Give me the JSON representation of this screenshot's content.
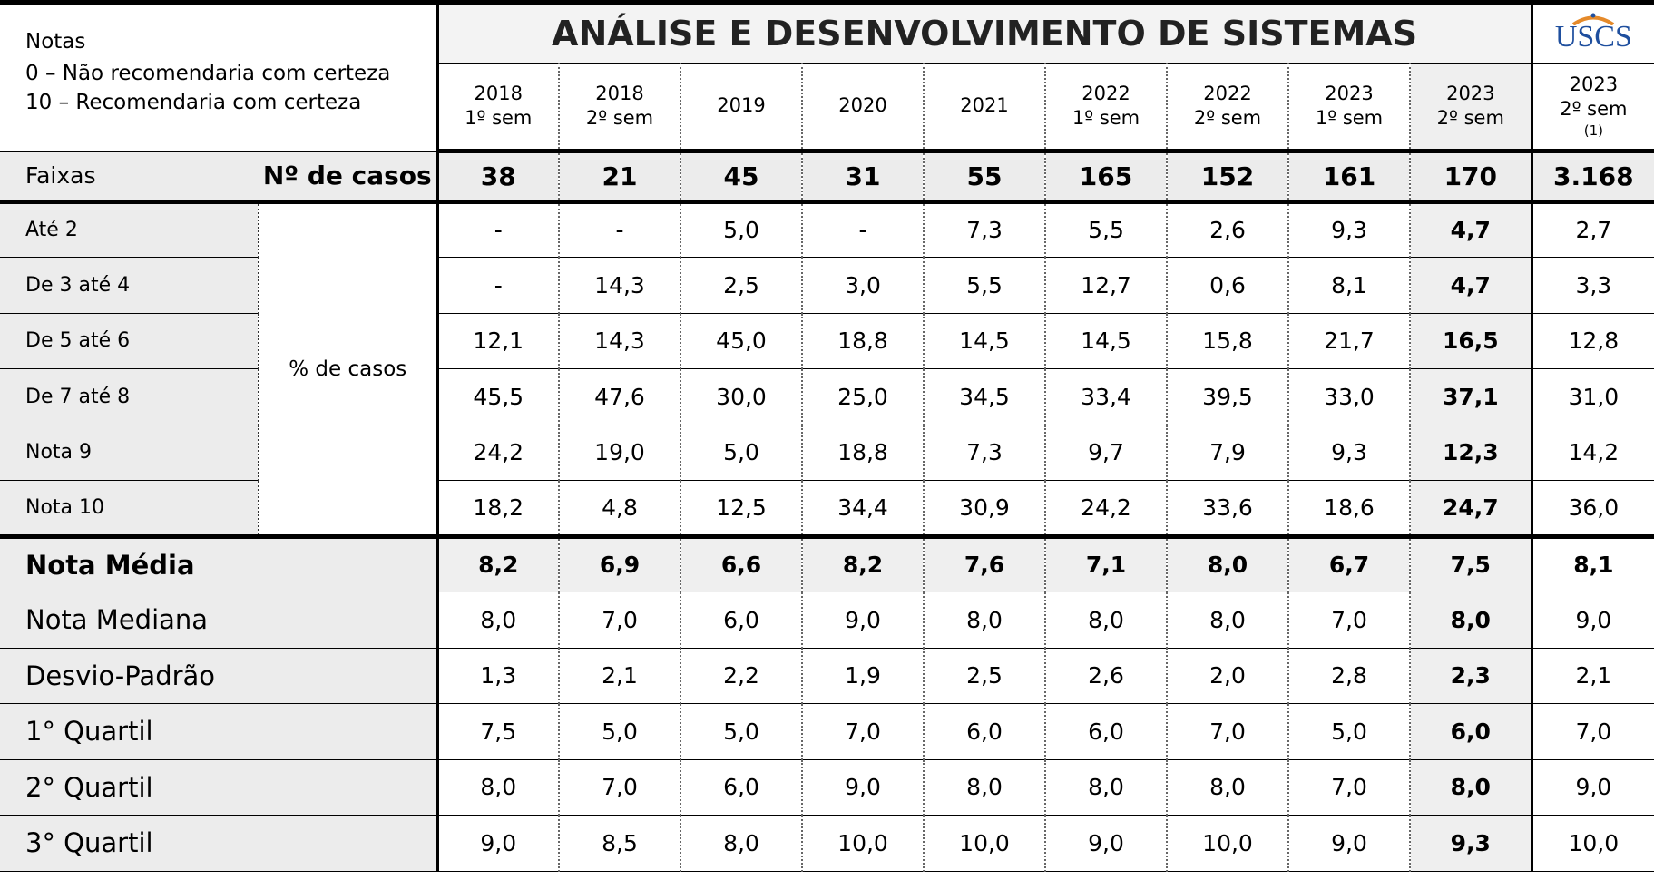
{
  "header": {
    "notes_title": "Notas",
    "notes": [
      "0 – Não recomendaria com certeza",
      "10 – Recomendaria com certeza"
    ],
    "title": "ANÁLISE E DESENVOLVIMENTO DE SISTEMAS",
    "logo": "USCS"
  },
  "columns": [
    {
      "year": "2018",
      "sem": "1º sem"
    },
    {
      "year": "2018",
      "sem": "2º sem"
    },
    {
      "year": "2019"
    },
    {
      "year": "2020"
    },
    {
      "year": "2021"
    },
    {
      "year": "2022",
      "sem": "1º sem"
    },
    {
      "year": "2022",
      "sem": "2º sem"
    },
    {
      "year": "2023",
      "sem": "1º sem"
    },
    {
      "year": "2023",
      "sem": "2º sem"
    },
    {
      "year": "2023",
      "sem": "2º sem",
      "note": "(1)"
    }
  ],
  "cases_row": {
    "label": "Faixas",
    "label2": "Nº de casos",
    "values": [
      "38",
      "21",
      "45",
      "31",
      "55",
      "165",
      "152",
      "161",
      "170",
      "3.168"
    ]
  },
  "distribution": {
    "group_label": "% de casos",
    "rows": [
      {
        "label": "Até 2",
        "values": [
          "-",
          "-",
          "5,0",
          "-",
          "7,3",
          "5,5",
          "2,6",
          "9,3",
          "4,7",
          "2,7"
        ]
      },
      {
        "label": "De 3 até 4",
        "values": [
          "-",
          "14,3",
          "2,5",
          "3,0",
          "5,5",
          "12,7",
          "0,6",
          "8,1",
          "4,7",
          "3,3"
        ]
      },
      {
        "label": "De 5 até 6",
        "values": [
          "12,1",
          "14,3",
          "45,0",
          "18,8",
          "14,5",
          "14,5",
          "15,8",
          "21,7",
          "16,5",
          "12,8"
        ]
      },
      {
        "label": "De 7 até 8",
        "values": [
          "45,5",
          "47,6",
          "30,0",
          "25,0",
          "34,5",
          "33,4",
          "39,5",
          "33,0",
          "37,1",
          "31,0"
        ]
      },
      {
        "label": "Nota 9",
        "values": [
          "24,2",
          "19,0",
          "5,0",
          "18,8",
          "7,3",
          "9,7",
          "7,9",
          "9,3",
          "12,3",
          "14,2"
        ]
      },
      {
        "label": "Nota 10",
        "values": [
          "18,2",
          "4,8",
          "12,5",
          "34,4",
          "30,9",
          "24,2",
          "33,6",
          "18,6",
          "24,7",
          "36,0"
        ]
      }
    ]
  },
  "stats": {
    "rows": [
      {
        "label": "Nota Média",
        "values": [
          "8,2",
          "6,9",
          "6,6",
          "8,2",
          "7,6",
          "7,1",
          "8,0",
          "6,7",
          "7,5",
          "8,1"
        ]
      },
      {
        "label": "Nota Mediana",
        "values": [
          "8,0",
          "7,0",
          "6,0",
          "9,0",
          "8,0",
          "8,0",
          "8,0",
          "7,0",
          "8,0",
          "9,0"
        ]
      },
      {
        "label": "Desvio-Padrão",
        "values": [
          "1,3",
          "2,1",
          "2,2",
          "1,9",
          "2,5",
          "2,6",
          "2,0",
          "2,8",
          "2,3",
          "2,1"
        ]
      },
      {
        "label": "1° Quartil",
        "values": [
          "7,5",
          "5,0",
          "5,0",
          "7,0",
          "6,0",
          "6,0",
          "7,0",
          "5,0",
          "6,0",
          "7,0"
        ]
      },
      {
        "label": "2° Quartil",
        "values": [
          "8,0",
          "7,0",
          "6,0",
          "9,0",
          "8,0",
          "8,0",
          "8,0",
          "7,0",
          "8,0",
          "9,0"
        ]
      },
      {
        "label": "3° Quartil",
        "values": [
          "9,0",
          "8,5",
          "8,0",
          "10,0",
          "10,0",
          "9,0",
          "10,0",
          "9,0",
          "9,3",
          "10,0"
        ]
      }
    ]
  }
}
